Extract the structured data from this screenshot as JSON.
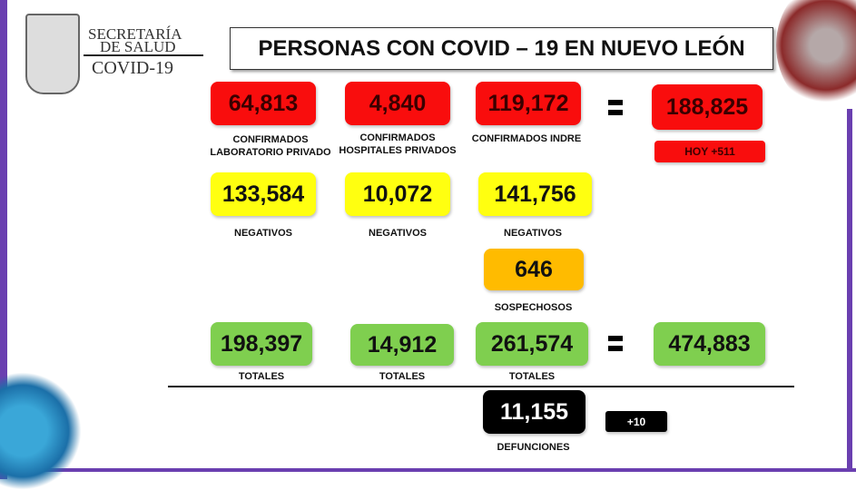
{
  "header": {
    "org_line1": "SECRETARÍA",
    "org_line2": "DE SALUD",
    "org_line3": "COVID-19",
    "title": "PERSONAS CON COVID – 19 EN NUEVO LEÓN"
  },
  "confirmed": [
    {
      "value": "64,813",
      "label1": "CONFIRMADOS",
      "label2": "LABORATORIO PRIVADO"
    },
    {
      "value": "4,840",
      "label1": "CONFIRMADOS",
      "label2": "HOSPITALES PRIVADOS"
    },
    {
      "value": "119,172",
      "label1": "CONFIRMADOS INDRE",
      "label2": ""
    }
  ],
  "confirmed_total": {
    "value": "188,825",
    "today": "HOY +511"
  },
  "negatives": [
    {
      "value": "133,584",
      "label": "NEGATIVOS"
    },
    {
      "value": "10,072",
      "label": "NEGATIVOS"
    },
    {
      "value": "141,756",
      "label": "NEGATIVOS"
    }
  ],
  "suspects": {
    "value": "646",
    "label": "SOSPECHOSOS"
  },
  "totals": [
    {
      "value": "198,397",
      "label": "TOTALES"
    },
    {
      "value": "14,912",
      "label": "TOTALES"
    },
    {
      "value": "261,574",
      "label": "TOTALES"
    }
  ],
  "grand_total": "474,883",
  "deaths": {
    "value": "11,155",
    "label": "DEFUNCIONES",
    "today": "+10"
  },
  "colors": {
    "red": "#f90d0d",
    "yellow": "#ffff10",
    "orange": "#ffbb00",
    "green": "#7fcf4f",
    "purple": "#6a3fb0"
  }
}
